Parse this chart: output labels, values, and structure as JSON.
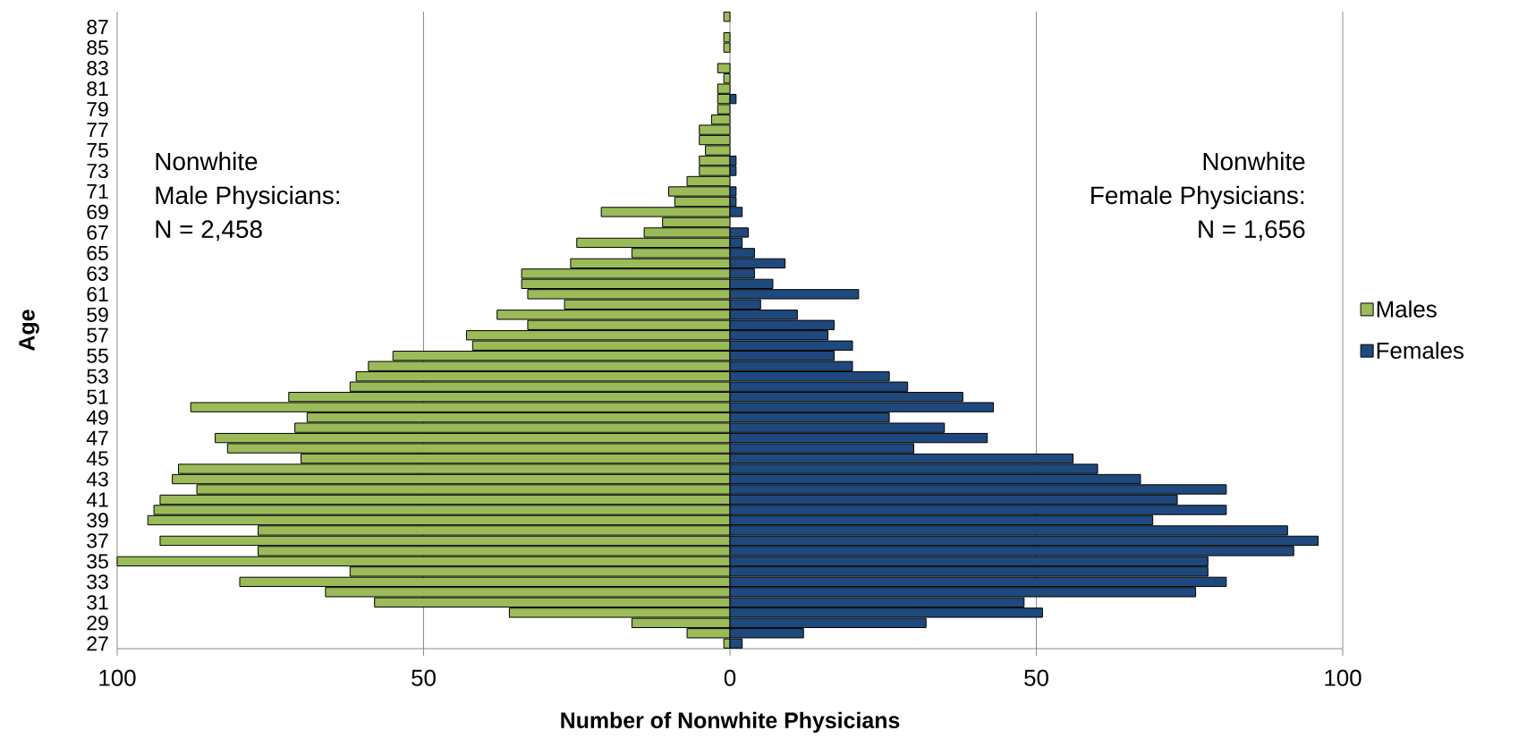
{
  "chart_data": {
    "type": "bar",
    "orientation": "horizontal",
    "stacked": true,
    "xlabel": "Number of Nonwhite Physicians",
    "ylabel": "Age",
    "categories": [
      null,
      "87",
      null,
      "85",
      null,
      "83",
      null,
      "81",
      null,
      "79",
      null,
      "77",
      null,
      "75",
      null,
      "73",
      null,
      "71",
      null,
      "69",
      null,
      "67",
      null,
      "65",
      null,
      "63",
      null,
      "61",
      null,
      "59",
      null,
      "57",
      null,
      "55",
      null,
      "53",
      null,
      "51",
      null,
      "49",
      null,
      "47",
      null,
      "45",
      null,
      "43",
      null,
      "41",
      null,
      "39",
      null,
      "37",
      null,
      "35",
      null,
      "33",
      null,
      "31",
      null,
      "29",
      null,
      "27"
    ],
    "series": [
      {
        "name": "Males",
        "color": "#9bbb59",
        "values": [
          -1,
          null,
          -1,
          -1,
          null,
          -2,
          -1,
          -2,
          -2,
          -2,
          -3,
          -5,
          -5,
          -4,
          -5,
          -5,
          -7,
          -10,
          -9,
          -21,
          -11,
          -14,
          -25,
          -16,
          -26,
          -34,
          -34,
          -33,
          -27,
          -38,
          -33,
          -43,
          -42,
          -55,
          -59,
          -61,
          -62,
          -72,
          -88,
          -69,
          -71,
          -84,
          -82,
          -70,
          -90,
          -91,
          -87,
          -93,
          -94,
          -95,
          -77,
          -93,
          -77,
          -100,
          -62,
          -80,
          -66,
          -58,
          -36,
          -16,
          -7,
          -1
        ]
      },
      {
        "name": "Females",
        "color": "#1f497d",
        "values": [
          null,
          null,
          null,
          null,
          null,
          null,
          null,
          null,
          1,
          null,
          null,
          null,
          null,
          null,
          1,
          1,
          null,
          1,
          1,
          2,
          null,
          3,
          2,
          4,
          9,
          4,
          7,
          21,
          5,
          11,
          17,
          16,
          20,
          17,
          20,
          26,
          29,
          38,
          43,
          26,
          35,
          42,
          30,
          56,
          60,
          67,
          81,
          73,
          81,
          69,
          91,
          96,
          92,
          78,
          78,
          81,
          76,
          48,
          51,
          32,
          12,
          2
        ]
      }
    ],
    "xlim": [
      -100,
      100
    ],
    "xticks": [
      {
        "value": -100,
        "label": "100"
      },
      {
        "value": -50,
        "label": "50"
      },
      0,
      50,
      100
    ],
    "grid": "x",
    "legend": "right",
    "annotations": [
      "Nonwhite",
      "Male Physicians:",
      "N = 2,458",
      "Nonwhite",
      "Female Physicians:",
      "N = 1,656"
    ]
  }
}
